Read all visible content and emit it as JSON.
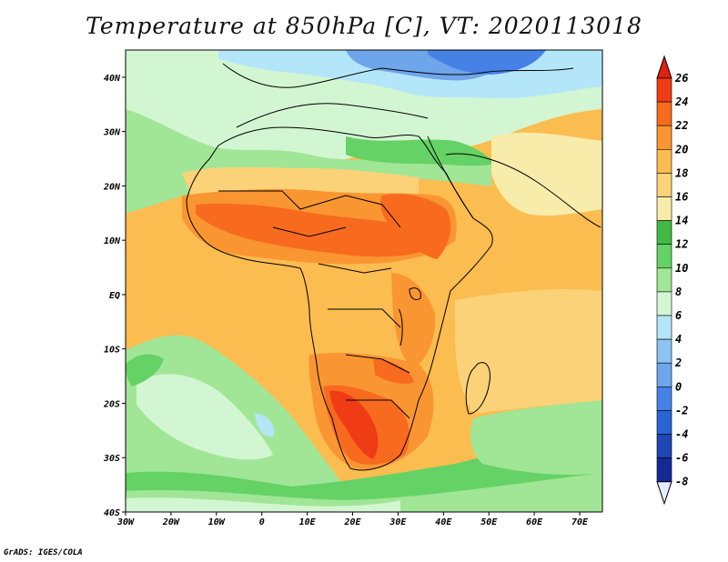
{
  "title": "Temperature at 850hPa [C], VT: 2020113018",
  "credit": "GrADS: IGES/COLA",
  "map": {
    "lon_range": [
      -30,
      75
    ],
    "lat_range": [
      -40,
      45
    ],
    "lon_ticks": [
      {
        "value": -30,
        "label": "30W"
      },
      {
        "value": -20,
        "label": "20W"
      },
      {
        "value": -10,
        "label": "10W"
      },
      {
        "value": 0,
        "label": "0"
      },
      {
        "value": 10,
        "label": "10E"
      },
      {
        "value": 20,
        "label": "20E"
      },
      {
        "value": 30,
        "label": "30E"
      },
      {
        "value": 40,
        "label": "40E"
      },
      {
        "value": 50,
        "label": "50E"
      },
      {
        "value": 60,
        "label": "60E"
      },
      {
        "value": 70,
        "label": "70E"
      }
    ],
    "lat_ticks": [
      {
        "value": 40,
        "label": "40N"
      },
      {
        "value": 30,
        "label": "30N"
      },
      {
        "value": 20,
        "label": "20N"
      },
      {
        "value": 10,
        "label": "10N"
      },
      {
        "value": 0,
        "label": "EQ"
      },
      {
        "value": -10,
        "label": "10S"
      },
      {
        "value": -20,
        "label": "20S"
      },
      {
        "value": -30,
        "label": "30S"
      },
      {
        "value": -40,
        "label": "40S"
      }
    ]
  },
  "colorbar": {
    "labels": [
      "26",
      "24",
      "22",
      "20",
      "18",
      "16",
      "14",
      "12",
      "10",
      "8",
      "6",
      "4",
      "2",
      "0",
      "-2",
      "-4",
      "-6",
      "-8"
    ],
    "top_arrow_color": "#e02010",
    "bottom_arrow_color": "#e8ecff",
    "colors": [
      "#f03c14",
      "#f86a1e",
      "#fa9632",
      "#fbbc50",
      "#fcd278",
      "#f8ecaa",
      "#42b942",
      "#64d264",
      "#a0e696",
      "#d2f6d2",
      "#b4e6fa",
      "#8cc3f0",
      "#6ea5eb",
      "#4682e6",
      "#2864d2",
      "#1e46b4",
      "#142896"
    ]
  },
  "colors": {
    "background": "#ffffff",
    "border": "#000000"
  }
}
